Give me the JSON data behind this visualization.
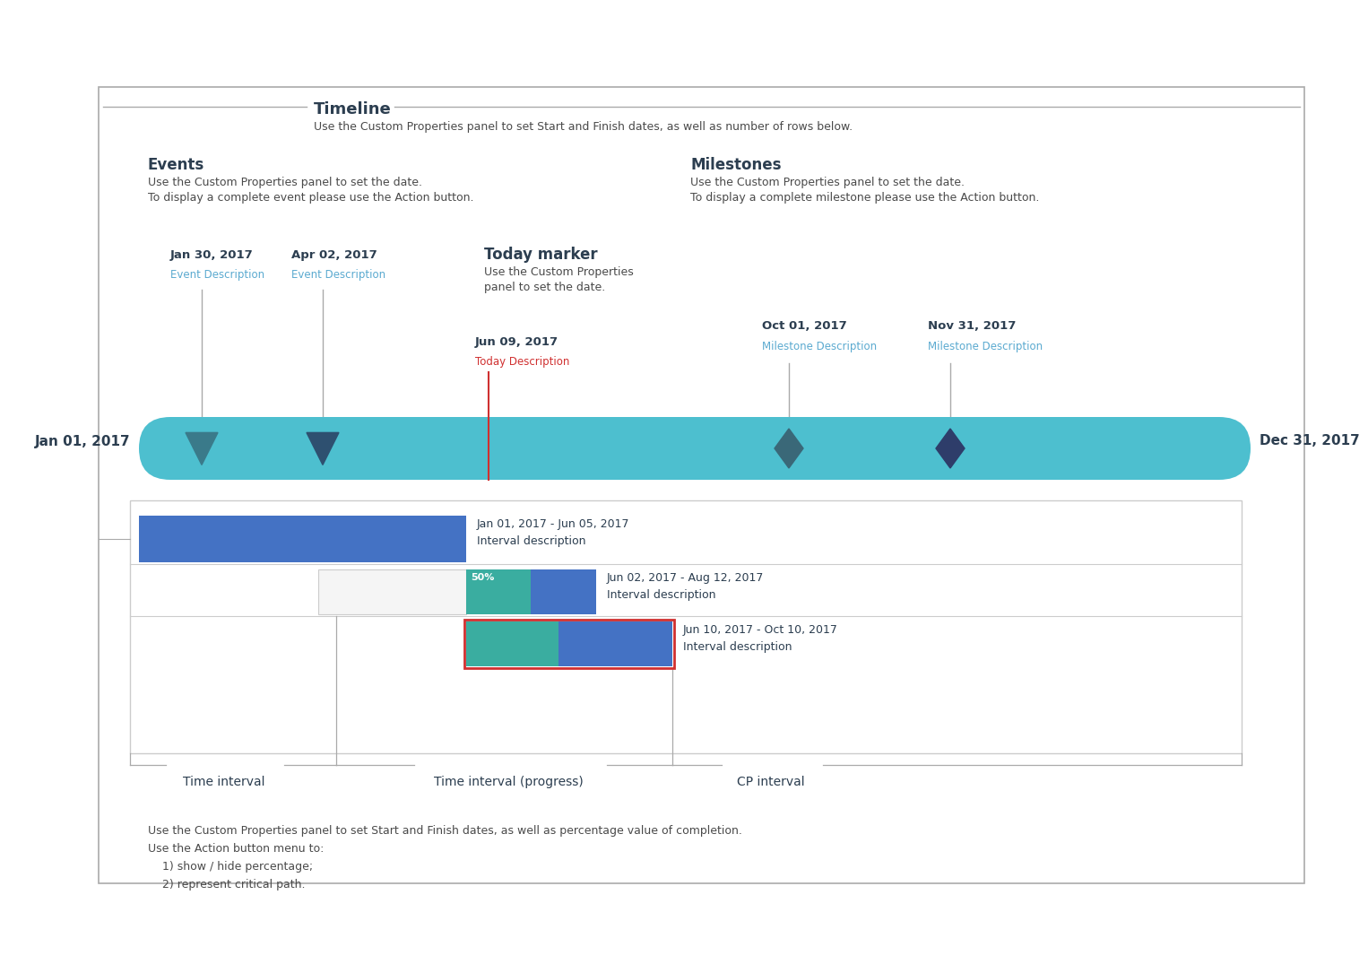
{
  "bg_color": "#ffffff",
  "title_label": "Timeline",
  "title_desc": "Use the Custom Properties panel to set Start and Finish dates, as well as number of rows below.",
  "events_label": "Events",
  "events_desc1": "Use the Custom Properties panel to set the date.",
  "events_desc2": "To display a complete event please use the Action button.",
  "milestones_label": "Milestones",
  "milestones_desc1": "Use the Custom Properties panel to set the date.",
  "milestones_desc2": "To display a complete milestone please use the Action button.",
  "today_label": "Today marker",
  "today_desc1": "Use the Custom Properties",
  "today_desc2": "panel to set the date.",
  "timeline_start": "Jan 01, 2017",
  "timeline_end": "Dec 31, 2017",
  "timeline_color": "#4DBFCF",
  "event1_date": "Jan 30, 2017",
  "event1_desc": "Event Description",
  "event2_date": "Apr 02, 2017",
  "event2_desc": "Event Description",
  "event_color1": "#3A7A8A",
  "event_color2": "#2E5070",
  "today_date": "Jun 09, 2017",
  "today_desc_text": "Today Description",
  "today_color": "#D03030",
  "milestone1_date": "Oct 01, 2017",
  "milestone1_desc": "Milestone Description",
  "milestone2_date": "Nov 31, 2017",
  "milestone2_desc": "Milestone Description",
  "milestone_color1": "#3A6878",
  "milestone_color2": "#2E3D6A",
  "interval1_label": "Jan 01, 2017 - Jun 05, 2017",
  "interval1_desc": "Interval description",
  "interval1_color": "#4472C4",
  "interval2_label": "Jun 02, 2017 - Aug 12, 2017",
  "interval2_desc": "Interval description",
  "interval2_color_done": "#3AADA0",
  "interval2_color_todo": "#4472C4",
  "interval2_pct": "50%",
  "interval3_label": "Jun 10, 2017 - Oct 10, 2017",
  "interval3_desc": "Interval description",
  "interval3_color_done": "#3AADA0",
  "interval3_color_todo": "#4472C4",
  "bottom_note1": "Use the Custom Properties panel to set Start and Finish dates, as well as percentage value of completion.",
  "bottom_note2": "Use the Action button menu to:",
  "bottom_note3": "    1) show / hide percentage;",
  "bottom_note4": "    2) represent critical path.",
  "label_time_interval": "Time interval",
  "label_time_interval_progress": "Time interval (progress)",
  "label_cp_interval": "CP interval",
  "text_color": "#2C3E50",
  "desc_color": "#4A4A4A",
  "link_color": "#5BAAD0",
  "line_color": "#AAAAAA",
  "sep_color": "#CCCCCC"
}
